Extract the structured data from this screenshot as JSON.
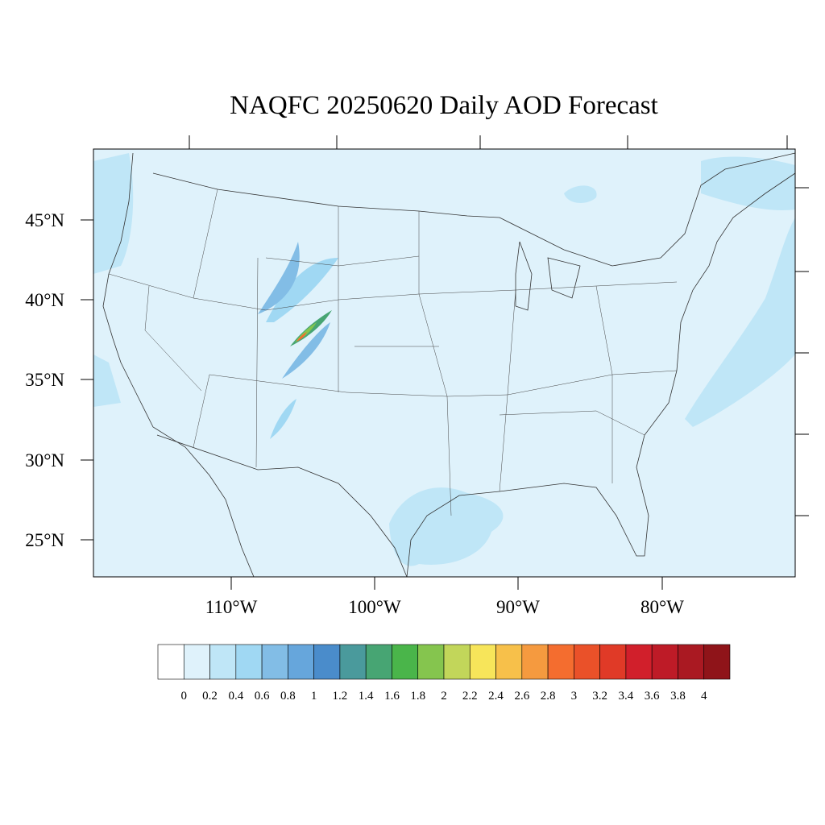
{
  "title": "NAQFC 20250620 Daily AOD Forecast",
  "lat_labels": [
    "45°N",
    "40°N",
    "35°N",
    "30°N",
    "25°N"
  ],
  "lon_labels": [
    "110°W",
    "100°W",
    "90°W",
    "80°W"
  ],
  "colorbar": {
    "levels": [
      0,
      0.2,
      0.4,
      0.6,
      0.8,
      1,
      1.2,
      1.4,
      1.6,
      1.8,
      2,
      2.2,
      2.4,
      2.6,
      2.8,
      3,
      3.2,
      3.4,
      3.6,
      3.8,
      4
    ],
    "colors": [
      "#ffffff",
      "#dff2fb",
      "#bfe6f7",
      "#a0d8f3",
      "#82bde6",
      "#66a6dc",
      "#4a8ccb",
      "#4a9a9c",
      "#47a573",
      "#4ab54a",
      "#85c54e",
      "#c2d65a",
      "#f7e55a",
      "#f7c04a",
      "#f59a3f",
      "#f46d2f",
      "#ea5129",
      "#e03a27",
      "#d11f2b",
      "#be1b27",
      "#aa1922",
      "#8f1419"
    ]
  }
}
